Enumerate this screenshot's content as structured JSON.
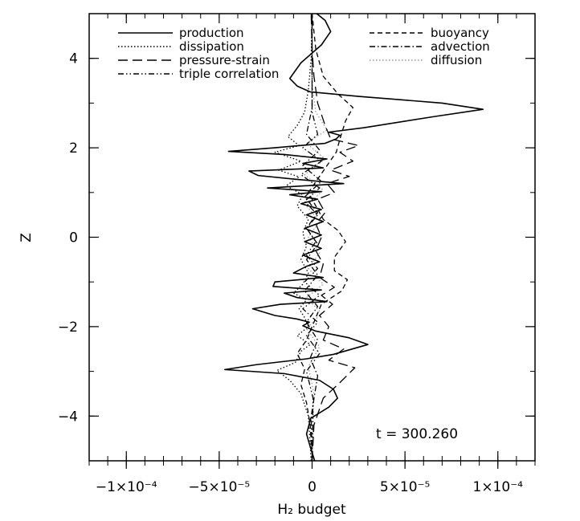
{
  "chart_data": {
    "type": "line",
    "orientation": "vertical-profile",
    "xlabel": "H₂ budget",
    "ylabel": "Z",
    "xlim": [
      -0.00012,
      0.00012
    ],
    "ylim": [
      -5,
      5
    ],
    "grid": false,
    "legend_placement": "top",
    "x_ticks": [
      {
        "value": -0.0001,
        "label": "−1×10⁻⁴"
      },
      {
        "value": -5e-05,
        "label": "−5×10⁻⁵"
      },
      {
        "value": 0,
        "label": "0"
      },
      {
        "value": 5e-05,
        "label": "5×10⁻⁵"
      },
      {
        "value": 0.0001,
        "label": "1×10⁻⁴"
      }
    ],
    "y_ticks": [
      {
        "value": -4,
        "label": "−4"
      },
      {
        "value": -2,
        "label": "−2"
      },
      {
        "value": 0,
        "label": "0"
      },
      {
        "value": 2,
        "label": "2"
      },
      {
        "value": 4,
        "label": "4"
      }
    ],
    "annotation": "t  =  300.260",
    "series": [
      {
        "name": "production",
        "dash": "solid",
        "color": "#000000",
        "points": [
          [
            1.4e-06,
            -5.0
          ],
          [
            -9e-07,
            -4.7
          ],
          [
            -3e-06,
            -4.4
          ],
          [
            -7e-07,
            -4.05
          ],
          [
            9e-06,
            -3.8
          ],
          [
            1.37e-05,
            -3.6
          ],
          [
            1.15e-05,
            -3.4
          ],
          [
            4e-06,
            -3.2
          ],
          [
            -1.5e-05,
            -3.05
          ],
          [
            -4.7e-05,
            -2.96
          ],
          [
            -3e-05,
            -2.85
          ],
          [
            -3e-06,
            -2.72
          ],
          [
            1.15e-05,
            -2.62
          ],
          [
            3e-05,
            -2.4
          ],
          [
            2e-05,
            -2.25
          ],
          [
            2e-06,
            -2.1
          ],
          [
            -5e-06,
            -1.98
          ],
          [
            -1.5e-06,
            -1.9
          ],
          [
            -8e-06,
            -1.83
          ],
          [
            -2e-05,
            -1.75
          ],
          [
            -3.2e-05,
            -1.6
          ],
          [
            -1.7e-05,
            -1.5
          ],
          [
            8e-06,
            -1.44
          ],
          [
            -8e-06,
            -1.35
          ],
          [
            -1.5e-05,
            -1.25
          ],
          [
            5e-06,
            -1.18
          ],
          [
            -2.1e-05,
            -1.1
          ],
          [
            -2e-05,
            -1.0
          ],
          [
            -7e-06,
            -0.95
          ],
          [
            6e-06,
            -0.9
          ],
          [
            -1e-05,
            -0.8
          ],
          [
            -3e-06,
            -0.65
          ],
          [
            4e-06,
            -0.55
          ],
          [
            -5e-06,
            -0.4
          ],
          [
            5e-06,
            -0.25
          ],
          [
            -4e-06,
            -0.1
          ],
          [
            5e-06,
            0.05
          ],
          [
            -4e-06,
            0.2
          ],
          [
            6e-06,
            0.35
          ],
          [
            -3e-06,
            0.5
          ],
          [
            5e-06,
            0.62
          ],
          [
            -6e-06,
            0.75
          ],
          [
            3e-06,
            0.85
          ],
          [
            -1.2e-05,
            0.95
          ],
          [
            5e-06,
            1.02
          ],
          [
            -2.4e-05,
            1.1
          ],
          [
            1.7e-05,
            1.2
          ],
          [
            -1e-05,
            1.3
          ],
          [
            -2.9e-05,
            1.38
          ],
          [
            -3.4e-05,
            1.48
          ],
          [
            6e-06,
            1.55
          ],
          [
            -5e-06,
            1.65
          ],
          [
            8e-06,
            1.75
          ],
          [
            -1.5e-05,
            1.85
          ],
          [
            -4.5e-05,
            1.92
          ],
          [
            -2e-05,
            2.0
          ],
          [
            7e-06,
            2.1
          ],
          [
            1.3e-05,
            2.2
          ],
          [
            1.5e-05,
            2.28
          ],
          [
            9e-06,
            2.35
          ],
          [
            2.8e-05,
            2.45
          ],
          [
            6.6e-05,
            2.7
          ],
          [
            9.2e-05,
            2.86
          ],
          [
            7e-05,
            3.0
          ],
          [
            2.5e-05,
            3.15
          ],
          [
            -1e-06,
            3.25
          ],
          [
            -8e-06,
            3.38
          ],
          [
            -1.2e-05,
            3.55
          ],
          [
            -6e-06,
            3.9
          ],
          [
            5e-06,
            4.3
          ],
          [
            1e-05,
            4.6
          ],
          [
            7e-06,
            4.85
          ],
          [
            2.5e-06,
            5.0
          ]
        ]
      },
      {
        "name": "dissipation",
        "dash": "dotted",
        "color": "#000000",
        "points": [
          [
            -5e-07,
            -5.0
          ],
          [
            -2e-06,
            -4.0
          ],
          [
            -6e-06,
            -3.5
          ],
          [
            -1.2e-05,
            -3.2
          ],
          [
            -1.9e-05,
            -2.98
          ],
          [
            -9e-06,
            -2.8
          ],
          [
            -6e-06,
            -2.55
          ],
          [
            -1e-06,
            -2.4
          ],
          [
            -8e-06,
            -2.2
          ],
          [
            -2e-06,
            -2.0
          ],
          [
            -4e-06,
            -1.8
          ],
          [
            -7e-06,
            -1.6
          ],
          [
            -3e-06,
            -1.4
          ],
          [
            -1e-05,
            -1.25
          ],
          [
            -5e-06,
            -1.05
          ],
          [
            -2e-06,
            -0.8
          ],
          [
            -6e-06,
            -0.5
          ],
          [
            -3e-06,
            -0.2
          ],
          [
            -5e-06,
            0.1
          ],
          [
            -2e-06,
            0.4
          ],
          [
            -8e-06,
            0.7
          ],
          [
            -5e-06,
            0.95
          ],
          [
            -1.4e-05,
            1.15
          ],
          [
            -7e-06,
            1.35
          ],
          [
            -1.8e-05,
            1.5
          ],
          [
            -6e-06,
            1.7
          ],
          [
            -2e-05,
            1.9
          ],
          [
            -7e-06,
            2.05
          ],
          [
            -1.3e-05,
            2.25
          ],
          [
            -8e-06,
            2.5
          ],
          [
            -4e-06,
            2.8
          ],
          [
            -2e-06,
            3.3
          ],
          [
            -5e-07,
            4.0
          ],
          [
            0.0,
            5.0
          ]
        ]
      },
      {
        "name": "pressure-strain",
        "dash": "longdash",
        "color": "#000000",
        "points": [
          [
            0.0,
            -5.0
          ],
          [
            1e-06,
            -4.2
          ],
          [
            6e-06,
            -3.6
          ],
          [
            1.5e-05,
            -3.25
          ],
          [
            2.3e-05,
            -2.92
          ],
          [
            9e-06,
            -2.75
          ],
          [
            1.7e-05,
            -2.5
          ],
          [
            6e-06,
            -2.3
          ],
          [
            9e-06,
            -2.0
          ],
          [
            4e-06,
            -1.75
          ],
          [
            1.1e-05,
            -1.5
          ],
          [
            5e-06,
            -1.3
          ],
          [
            1.2e-05,
            -1.12
          ],
          [
            4e-06,
            -0.9
          ],
          [
            6e-06,
            -0.6
          ],
          [
            2e-06,
            -0.3
          ],
          [
            5e-06,
            0.0
          ],
          [
            2e-06,
            0.3
          ],
          [
            7e-06,
            0.55
          ],
          [
            3e-06,
            0.85
          ],
          [
            1.2e-05,
            1.0
          ],
          [
            8e-06,
            1.2
          ],
          [
            2e-05,
            1.36
          ],
          [
            1e-05,
            1.5
          ],
          [
            2.2e-05,
            1.7
          ],
          [
            1.5e-05,
            1.9
          ],
          [
            2.5e-05,
            2.05
          ],
          [
            1e-05,
            2.2
          ],
          [
            7e-06,
            2.5
          ],
          [
            3e-06,
            3.0
          ],
          [
            1e-06,
            3.6
          ],
          [
            0.0,
            4.2
          ],
          [
            -5e-07,
            5.0
          ]
        ]
      },
      {
        "name": "triple correlation",
        "dash": "dashdotdot",
        "color": "#000000",
        "points": [
          [
            0.0,
            -5.0
          ],
          [
            5e-07,
            -3.6
          ],
          [
            -3e-06,
            -3.0
          ],
          [
            4e-06,
            -2.6
          ],
          [
            -3e-06,
            -2.2
          ],
          [
            3e-06,
            -1.9
          ],
          [
            -5e-06,
            -1.6
          ],
          [
            4e-06,
            -1.3
          ],
          [
            -4e-06,
            -1.0
          ],
          [
            3e-06,
            -0.7
          ],
          [
            -3e-06,
            -0.4
          ],
          [
            2e-06,
            -0.1
          ],
          [
            -3e-06,
            0.2
          ],
          [
            3e-06,
            0.5
          ],
          [
            -4e-06,
            0.8
          ],
          [
            4e-06,
            1.1
          ],
          [
            -6e-06,
            1.4
          ],
          [
            5e-06,
            1.7
          ],
          [
            -5e-06,
            2.0
          ],
          [
            3e-06,
            2.3
          ],
          [
            0.0,
            2.8
          ],
          [
            0.0,
            5.0
          ]
        ]
      },
      {
        "name": "buoyancy",
        "dash": "dashed",
        "color": "#000000",
        "points": [
          [
            0.0,
            -5.0
          ],
          [
            -1e-06,
            -4.2
          ],
          [
            -3e-06,
            -3.7
          ],
          [
            -6e-06,
            -3.3
          ],
          [
            -4e-06,
            -2.95
          ],
          [
            -8e-06,
            -2.6
          ],
          [
            -3e-06,
            -2.3
          ],
          [
            1e-06,
            -1.9
          ],
          [
            5e-06,
            -1.5
          ],
          [
            1.6e-05,
            -1.2
          ],
          [
            1.9e-05,
            -0.95
          ],
          [
            1.2e-05,
            -0.75
          ],
          [
            1.2e-05,
            -0.45
          ],
          [
            1.8e-05,
            -0.1
          ],
          [
            1.4e-05,
            0.15
          ],
          [
            6e-06,
            0.4
          ],
          [
            2e-06,
            0.7
          ],
          [
            -2e-06,
            1.0
          ],
          [
            3e-06,
            1.3
          ],
          [
            8e-06,
            1.6
          ],
          [
            1.3e-05,
            1.9
          ],
          [
            1.5e-05,
            2.2
          ],
          [
            1.8e-05,
            2.6
          ],
          [
            2.2e-05,
            2.9
          ],
          [
            1.4e-05,
            3.2
          ],
          [
            6e-06,
            3.6
          ],
          [
            2e-06,
            4.2
          ],
          [
            0.0,
            5.0
          ]
        ]
      },
      {
        "name": "advection",
        "dash": "dashdot",
        "color": "#000000",
        "points": [
          [
            0.0,
            -5.0
          ],
          [
            -5e-07,
            -4.0
          ],
          [
            3e-06,
            -3.1
          ],
          [
            -1e-06,
            -2.7
          ],
          [
            3e-06,
            -2.3
          ],
          [
            -3e-06,
            -1.9
          ],
          [
            3e-06,
            -1.55
          ],
          [
            -4e-06,
            -1.2
          ],
          [
            3e-06,
            -0.85
          ],
          [
            -3e-06,
            -0.5
          ],
          [
            3e-06,
            -0.15
          ],
          [
            -3e-06,
            0.2
          ],
          [
            3e-06,
            0.55
          ],
          [
            -4e-06,
            0.9
          ],
          [
            5e-06,
            1.25
          ],
          [
            -5e-06,
            1.6
          ],
          [
            4e-06,
            1.95
          ],
          [
            -3e-06,
            2.3
          ],
          [
            0.0,
            2.9
          ],
          [
            0.0,
            5.0
          ]
        ]
      },
      {
        "name": "diffusion",
        "dash": "dotted",
        "color": "#999999",
        "points": [
          [
            0.0,
            -5.0
          ],
          [
            1e-06,
            -3.5
          ],
          [
            -2e-06,
            -2.9
          ],
          [
            4e-06,
            -2.45
          ],
          [
            -3e-06,
            -2.05
          ],
          [
            5e-06,
            -1.7
          ],
          [
            -3e-06,
            -1.35
          ],
          [
            6e-06,
            -1.05
          ],
          [
            -2e-06,
            -0.7
          ],
          [
            4e-06,
            -0.35
          ],
          [
            -2e-06,
            0.0
          ],
          [
            4e-06,
            0.35
          ],
          [
            -3e-06,
            0.7
          ],
          [
            6e-06,
            1.05
          ],
          [
            -4e-06,
            1.4
          ],
          [
            7e-06,
            1.75
          ],
          [
            -3e-06,
            2.1
          ],
          [
            8e-06,
            2.4
          ],
          [
            2e-06,
            2.8
          ],
          [
            0.0,
            3.4
          ],
          [
            0.0,
            5.0
          ]
        ]
      }
    ]
  }
}
